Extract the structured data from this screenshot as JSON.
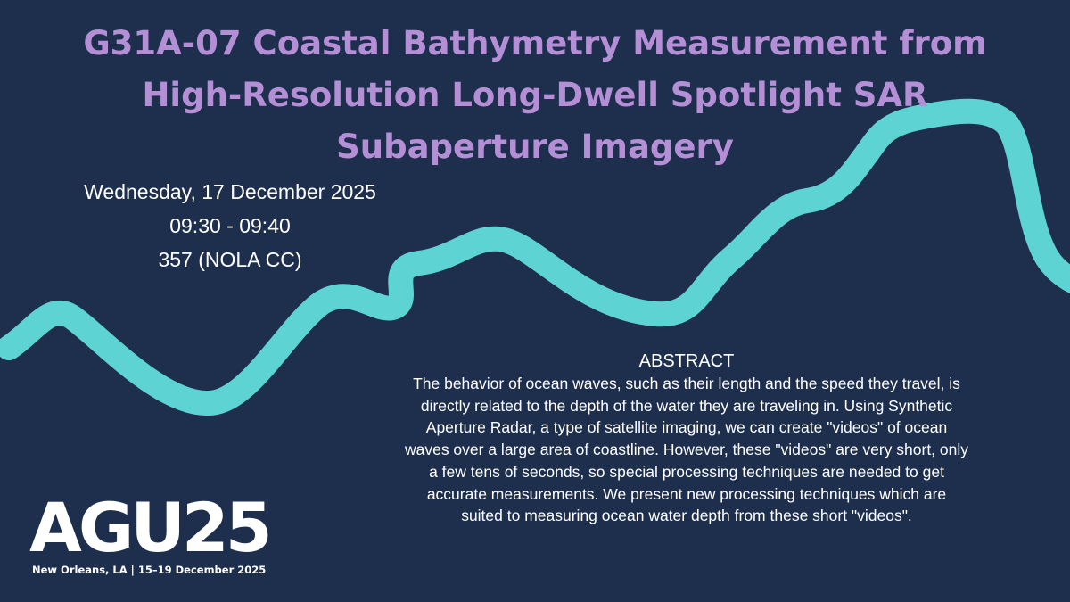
{
  "title": {
    "lines": [
      "G31A-07 Coastal Bathymetry Measurement from",
      "High-Resolution Long-Dwell Spotlight SAR",
      "Subaperture Imagery"
    ]
  },
  "session": {
    "date": "Wednesday, 17 December 2025",
    "time": "09:30 - 09:40",
    "room": "357 (NOLA CC)"
  },
  "abstract": {
    "heading": "ABSTRACT",
    "lines": [
      "The behavior of ocean waves, such as their length and the speed they travel, is",
      "directly related to the depth of the water they are traveling in. Using Synthetic",
      "Aperture Radar, a type of satellite imaging, we can create \"videos\" of ocean",
      "waves over a large area of coastline. However, these \"videos\" are very short, only",
      "a few tens of seconds, so special processing techniques are needed to get",
      "accurate measurements. We present new processing techniques which are",
      "suited to measuring ocean water depth from these short \"videos\"."
    ]
  },
  "logo": {
    "mark": "AGU25",
    "tagline": "New Orleans, LA | 15–19 December 2025"
  }
}
